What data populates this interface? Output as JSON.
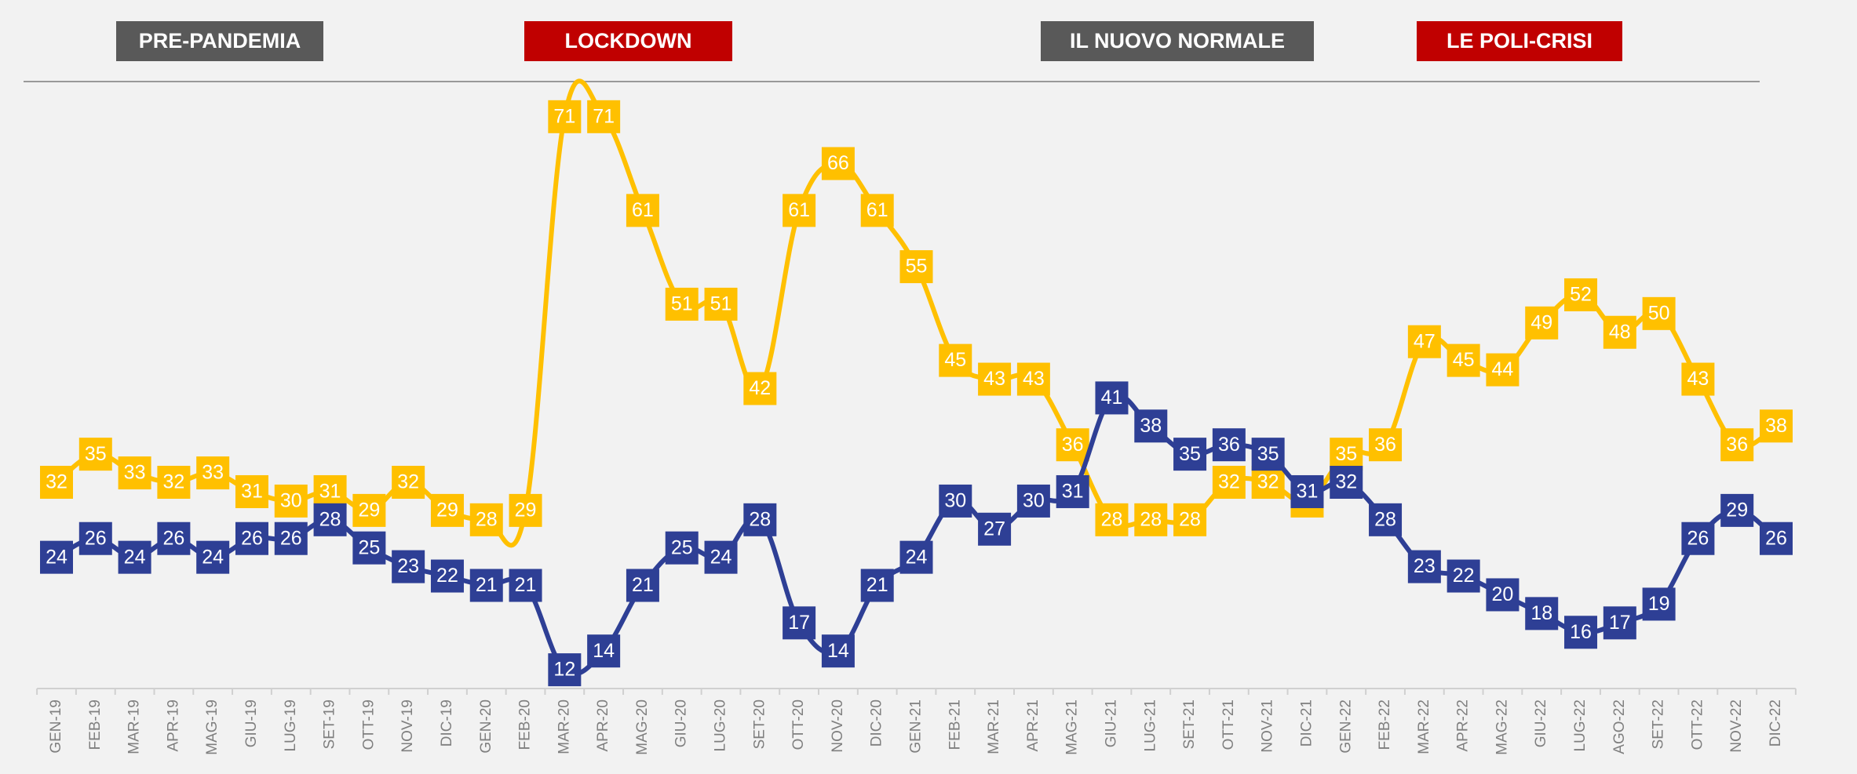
{
  "chart_data": {
    "type": "line",
    "annotations": [
      {
        "text": "PRE-PANDEMIA",
        "color": "#595959"
      },
      {
        "text": "LOCKDOWN",
        "color": "#c00000"
      },
      {
        "text": "IL NUOVO NORMALE",
        "color": "#595959"
      },
      {
        "text": "LE POLI-CRISI",
        "color": "#c00000"
      }
    ],
    "categories": [
      "GEN-19",
      "FEB-19",
      "MAR-19",
      "APR-19",
      "MAG-19",
      "GIU-19",
      "LUG-19",
      "SET-19",
      "OTT-19",
      "NOV-19",
      "DIC-19",
      "GEN-20",
      "FEB-20",
      "MAR-20",
      "APR-20",
      "MAG-20",
      "GIU-20",
      "LUG-20",
      "SET-20",
      "OTT-20",
      "NOV-20",
      "DIC-20",
      "GEN-21",
      "FEB-21",
      "MAR-21",
      "APR-21",
      "MAG-21",
      "GIU-21",
      "LUG-21",
      "SET-21",
      "OTT-21",
      "NOV-21",
      "DIC-21",
      "GEN-22",
      "FEB-22",
      "MAR-22",
      "APR-22",
      "MAG-22",
      "GIU-22",
      "LUG-22",
      "AGO-22",
      "SET-22",
      "OTT-22",
      "NOV-22",
      "DIC-22"
    ],
    "series": [
      {
        "color": "#ffc000",
        "values": [
          32,
          35,
          33,
          32,
          33,
          31,
          30,
          31,
          29,
          32,
          29,
          28,
          29,
          71,
          71,
          61,
          51,
          51,
          42,
          61,
          66,
          61,
          55,
          45,
          43,
          43,
          36,
          28,
          28,
          28,
          32,
          32,
          30,
          35,
          36,
          47,
          45,
          44,
          49,
          52,
          48,
          50,
          43,
          36,
          38
        ]
      },
      {
        "color": "#2e3f95",
        "values": [
          24,
          26,
          24,
          26,
          24,
          26,
          26,
          28,
          25,
          23,
          22,
          21,
          21,
          12,
          14,
          21,
          25,
          24,
          28,
          17,
          14,
          21,
          24,
          30,
          27,
          30,
          31,
          41,
          38,
          35,
          36,
          35,
          31,
          32,
          28,
          23,
          22,
          20,
          18,
          16,
          17,
          19,
          26,
          29,
          26
        ]
      }
    ],
    "ylim": [
      10,
      75
    ]
  }
}
